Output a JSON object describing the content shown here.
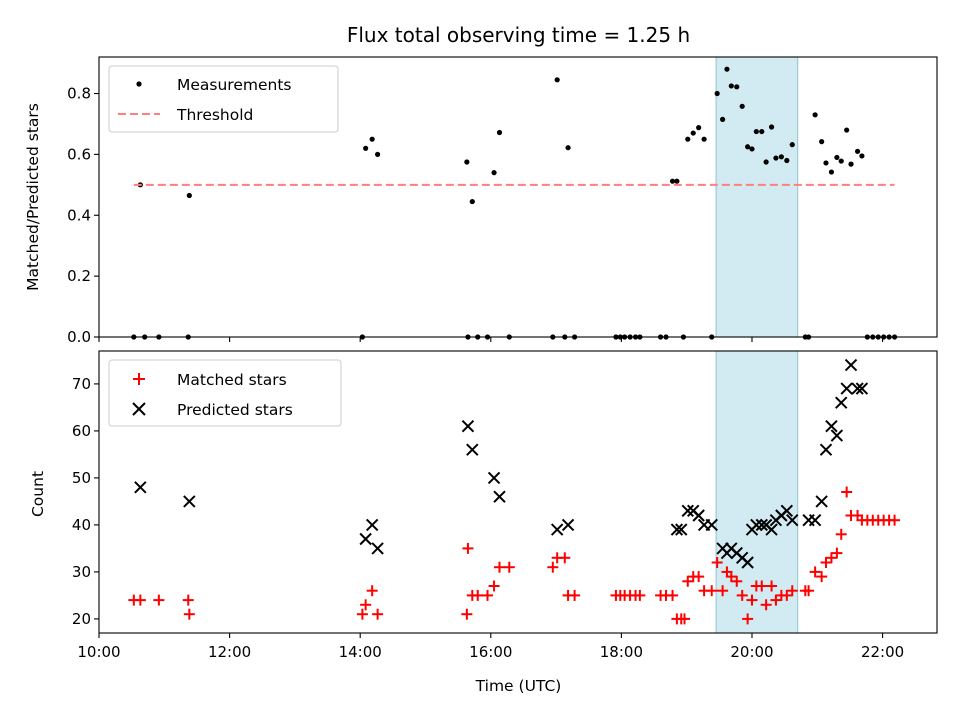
{
  "chart_data": [
    {
      "type": "scatter",
      "title": "Flux total observing time = 1.25 h",
      "xlabel": "",
      "ylabel": "Matched/Predicted stars",
      "xlim": [
        "10:00",
        "22:50"
      ],
      "ylim": [
        0,
        0.92
      ],
      "yticks": [
        "0.0",
        "0.2",
        "0.4",
        "0.6",
        "0.8"
      ],
      "xtick_labels_visible": false,
      "shaded_interval": [
        "19:27",
        "20:42"
      ],
      "shade_color": "#add8e6",
      "legend_position": "top-left",
      "series": [
        {
          "name": "Measurements",
          "marker": "dot",
          "color": "#000000",
          "points": [
            [
              "10:32",
              0.0
            ],
            [
              "10:38",
              0.5
            ],
            [
              "10:42",
              0.0
            ],
            [
              "10:55",
              0.0
            ],
            [
              "11:22",
              0.0
            ],
            [
              "11:23",
              0.465
            ],
            [
              "14:02",
              0.0
            ],
            [
              "14:05",
              0.62
            ],
            [
              "14:11",
              0.65
            ],
            [
              "14:16",
              0.6
            ],
            [
              "15:38",
              0.575
            ],
            [
              "15:39",
              0.0
            ],
            [
              "15:43",
              0.445
            ],
            [
              "15:48",
              0.0
            ],
            [
              "15:57",
              0.0
            ],
            [
              "16:03",
              0.54
            ],
            [
              "16:08",
              0.672
            ],
            [
              "16:17",
              0.0
            ],
            [
              "16:57",
              0.0
            ],
            [
              "17:01",
              0.845
            ],
            [
              "17:08",
              0.0
            ],
            [
              "17:11",
              0.622
            ],
            [
              "17:17",
              0.0
            ],
            [
              "17:55",
              0.0
            ],
            [
              "17:59",
              0.0
            ],
            [
              "18:03",
              0.0
            ],
            [
              "18:08",
              0.0
            ],
            [
              "18:13",
              0.0
            ],
            [
              "18:17",
              0.0
            ],
            [
              "18:36",
              0.0
            ],
            [
              "18:41",
              0.0
            ],
            [
              "18:47",
              0.512
            ],
            [
              "18:51",
              0.512
            ],
            [
              "18:57",
              0.0
            ],
            [
              "19:01",
              0.65
            ],
            [
              "19:06",
              0.67
            ],
            [
              "19:11",
              0.688
            ],
            [
              "19:16",
              0.65
            ],
            [
              "19:23",
              0.0
            ],
            [
              "19:28",
              0.8
            ],
            [
              "19:33",
              0.715
            ],
            [
              "19:37",
              0.88
            ],
            [
              "19:41",
              0.825
            ],
            [
              "19:46",
              0.822
            ],
            [
              "19:51",
              0.758
            ],
            [
              "19:56",
              0.625
            ],
            [
              "20:00",
              0.618
            ],
            [
              "20:04",
              0.675
            ],
            [
              "20:09",
              0.675
            ],
            [
              "20:13",
              0.575
            ],
            [
              "20:18",
              0.69
            ],
            [
              "20:22",
              0.588
            ],
            [
              "20:27",
              0.592
            ],
            [
              "20:32",
              0.58
            ],
            [
              "20:37",
              0.632
            ],
            [
              "20:49",
              0.0
            ],
            [
              "20:52",
              0.0
            ],
            [
              "20:58",
              0.73
            ],
            [
              "21:04",
              0.642
            ],
            [
              "21:08",
              0.572
            ],
            [
              "21:13",
              0.542
            ],
            [
              "21:18",
              0.59
            ],
            [
              "21:22",
              0.578
            ],
            [
              "21:27",
              0.68
            ],
            [
              "21:31",
              0.568
            ],
            [
              "21:37",
              0.61
            ],
            [
              "21:41",
              0.595
            ],
            [
              "21:46",
              0.0
            ],
            [
              "21:51",
              0.0
            ],
            [
              "21:56",
              0.0
            ],
            [
              "22:01",
              0.0
            ],
            [
              "22:06",
              0.0
            ],
            [
              "22:11",
              0.0
            ]
          ]
        },
        {
          "name": "Threshold",
          "marker": "dashed-line",
          "color": "#ff7f7f",
          "points": [
            [
              "10:32",
              0.5
            ],
            [
              "22:11",
              0.5
            ]
          ]
        }
      ]
    },
    {
      "type": "scatter",
      "title": "",
      "xlabel": "Time (UTC)",
      "ylabel": "Count",
      "xlim": [
        "10:00",
        "22:50"
      ],
      "ylim": [
        17,
        77
      ],
      "yticks": [
        "20",
        "30",
        "40",
        "50",
        "60",
        "70"
      ],
      "xtick_labels": [
        "10:00",
        "12:00",
        "14:00",
        "16:00",
        "18:00",
        "20:00",
        "22:00"
      ],
      "shaded_interval": [
        "19:27",
        "20:42"
      ],
      "shade_color": "#add8e6",
      "legend_position": "top-left",
      "series": [
        {
          "name": "Matched stars",
          "marker": "plus",
          "color": "#ff0000",
          "points": [
            [
              "10:32",
              24
            ],
            [
              "10:38",
              24
            ],
            [
              "10:55",
              24
            ],
            [
              "11:22",
              24
            ],
            [
              "11:23",
              21
            ],
            [
              "14:02",
              21
            ],
            [
              "14:05",
              23
            ],
            [
              "14:11",
              26
            ],
            [
              "14:16",
              21
            ],
            [
              "15:38",
              21
            ],
            [
              "15:39",
              35
            ],
            [
              "15:43",
              25
            ],
            [
              "15:48",
              25
            ],
            [
              "15:57",
              25
            ],
            [
              "16:03",
              27
            ],
            [
              "16:08",
              31
            ],
            [
              "16:17",
              31
            ],
            [
              "16:57",
              31
            ],
            [
              "17:01",
              33
            ],
            [
              "17:08",
              33
            ],
            [
              "17:11",
              25
            ],
            [
              "17:17",
              25
            ],
            [
              "17:55",
              25
            ],
            [
              "17:59",
              25
            ],
            [
              "18:03",
              25
            ],
            [
              "18:08",
              25
            ],
            [
              "18:13",
              25
            ],
            [
              "18:17",
              25
            ],
            [
              "18:36",
              25
            ],
            [
              "18:41",
              25
            ],
            [
              "18:47",
              25
            ],
            [
              "18:51",
              20
            ],
            [
              "18:55",
              20
            ],
            [
              "18:58",
              20
            ],
            [
              "19:01",
              28
            ],
            [
              "19:06",
              29
            ],
            [
              "19:11",
              29
            ],
            [
              "19:16",
              26
            ],
            [
              "19:23",
              26
            ],
            [
              "19:28",
              32
            ],
            [
              "19:33",
              26
            ],
            [
              "19:37",
              30
            ],
            [
              "19:41",
              29
            ],
            [
              "19:46",
              28
            ],
            [
              "19:51",
              25
            ],
            [
              "19:56",
              20
            ],
            [
              "20:00",
              24
            ],
            [
              "20:04",
              27
            ],
            [
              "20:09",
              27
            ],
            [
              "20:13",
              23
            ],
            [
              "20:18",
              27
            ],
            [
              "20:22",
              24
            ],
            [
              "20:27",
              25
            ],
            [
              "20:32",
              25
            ],
            [
              "20:37",
              26
            ],
            [
              "20:49",
              26
            ],
            [
              "20:52",
              26
            ],
            [
              "20:58",
              30
            ],
            [
              "21:04",
              29
            ],
            [
              "21:08",
              32
            ],
            [
              "21:13",
              33
            ],
            [
              "21:18",
              34
            ],
            [
              "21:22",
              38
            ],
            [
              "21:27",
              47
            ],
            [
              "21:31",
              42
            ],
            [
              "21:37",
              42
            ],
            [
              "21:41",
              41
            ],
            [
              "21:46",
              41
            ],
            [
              "21:51",
              41
            ],
            [
              "21:56",
              41
            ],
            [
              "22:01",
              41
            ],
            [
              "22:06",
              41
            ],
            [
              "22:11",
              41
            ]
          ]
        },
        {
          "name": "Predicted stars",
          "marker": "x",
          "color": "#000000",
          "points": [
            [
              "10:38",
              48
            ],
            [
              "11:23",
              45
            ],
            [
              "14:05",
              37
            ],
            [
              "14:11",
              40
            ],
            [
              "14:16",
              35
            ],
            [
              "15:39",
              61
            ],
            [
              "15:43",
              56
            ],
            [
              "16:03",
              50
            ],
            [
              "16:08",
              46
            ],
            [
              "17:01",
              39
            ],
            [
              "17:11",
              40
            ],
            [
              "18:51",
              39
            ],
            [
              "18:55",
              39
            ],
            [
              "19:01",
              43
            ],
            [
              "19:06",
              43
            ],
            [
              "19:11",
              42
            ],
            [
              "19:16",
              40
            ],
            [
              "19:23",
              40
            ],
            [
              "19:33",
              35
            ],
            [
              "19:37",
              34
            ],
            [
              "19:41",
              35
            ],
            [
              "19:46",
              34
            ],
            [
              "19:51",
              33
            ],
            [
              "19:56",
              32
            ],
            [
              "20:00",
              39
            ],
            [
              "20:04",
              40
            ],
            [
              "20:09",
              40
            ],
            [
              "20:13",
              40
            ],
            [
              "20:18",
              39
            ],
            [
              "20:22",
              41
            ],
            [
              "20:27",
              42
            ],
            [
              "20:32",
              43
            ],
            [
              "20:37",
              41
            ],
            [
              "20:52",
              41
            ],
            [
              "20:58",
              41
            ],
            [
              "21:04",
              45
            ],
            [
              "21:08",
              56
            ],
            [
              "21:13",
              61
            ],
            [
              "21:18",
              59
            ],
            [
              "21:22",
              66
            ],
            [
              "21:27",
              69
            ],
            [
              "21:31",
              74
            ],
            [
              "21:37",
              69
            ],
            [
              "21:41",
              69
            ]
          ]
        }
      ]
    }
  ]
}
